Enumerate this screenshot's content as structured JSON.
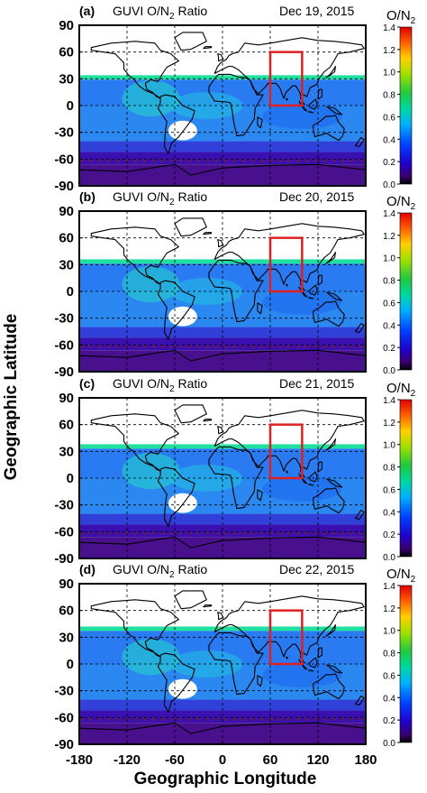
{
  "figure": {
    "ylabel": "Geographic Latitude",
    "xlabel": "Geographic Longitude",
    "colorbar_title": "O/N",
    "colorbar_title_sub": "2",
    "colorbar_ticks": [
      "1.4",
      "1.2",
      "1.0",
      "0.8",
      "0.6",
      "0.4",
      "0.2",
      "0.0"
    ],
    "colorbar_tick_values": [
      1.4,
      1.2,
      1.0,
      0.8,
      0.6,
      0.4,
      0.2,
      0.0
    ],
    "lat_ticks": [
      "90",
      "60",
      "30",
      "0",
      "-30",
      "-60",
      "-90"
    ],
    "lon_ticks": [
      "-180",
      "-120",
      "-60",
      "0",
      "60",
      "120",
      "180"
    ]
  },
  "panels": [
    {
      "letter": "(a)",
      "title_pre": "GUVI O/N",
      "title_sub": "2",
      "title_post": " Ratio",
      "date": "Dec 19, 2015",
      "band_top": 34
    },
    {
      "letter": "(b)",
      "title_pre": "GUVI O/N",
      "title_sub": "2",
      "title_post": " Ratio",
      "date": "Dec 20, 2015",
      "band_top": 36
    },
    {
      "letter": "(c)",
      "title_pre": "GUVI O/N",
      "title_sub": "2",
      "title_post": " Ratio",
      "date": "Dec 21, 2015",
      "band_top": 38
    },
    {
      "letter": "(d)",
      "title_pre": "GUVI O/N",
      "title_sub": "2",
      "title_post": " Ratio",
      "date": "Dec 22, 2015",
      "band_top": 42
    }
  ],
  "chart_data": {
    "type": "heatmap",
    "variable": "O/N2",
    "colorbar_range": [
      0.0,
      1.4
    ],
    "xlim": [
      -180,
      180
    ],
    "ylim": [
      -90,
      90
    ],
    "box_region": {
      "lon": [
        60,
        100
      ],
      "lat": [
        0,
        60
      ]
    },
    "no_data_oval": {
      "lon_center": -50,
      "lat_center": -28,
      "lon_halfwidth": 18,
      "lat_halfheight": 11
    },
    "panels": [
      {
        "date": "Dec 19, 2015",
        "data_lat_max": 34,
        "zonal_mean_o_n2": [
          {
            "lat": 30,
            "value": 0.4
          },
          {
            "lat": 0,
            "value": 0.5
          },
          {
            "lat": -30,
            "value": 0.55
          },
          {
            "lat": -60,
            "value": 0.2
          },
          {
            "lat": -75,
            "value": 0.1
          }
        ]
      },
      {
        "date": "Dec 20, 2015",
        "data_lat_max": 36,
        "zonal_mean_o_n2": [
          {
            "lat": 30,
            "value": 0.45
          },
          {
            "lat": 0,
            "value": 0.45
          },
          {
            "lat": -30,
            "value": 0.4
          },
          {
            "lat": -60,
            "value": 0.2
          },
          {
            "lat": -75,
            "value": 0.1
          }
        ]
      },
      {
        "date": "Dec 21, 2015",
        "data_lat_max": 38,
        "zonal_mean_o_n2": [
          {
            "lat": 30,
            "value": 0.45
          },
          {
            "lat": 0,
            "value": 0.45
          },
          {
            "lat": -30,
            "value": 0.3
          },
          {
            "lat": -60,
            "value": 0.15
          },
          {
            "lat": -75,
            "value": 0.1
          }
        ]
      },
      {
        "date": "Dec 22, 2015",
        "data_lat_max": 42,
        "zonal_mean_o_n2": [
          {
            "lat": 30,
            "value": 0.4
          },
          {
            "lat": 0,
            "value": 0.35
          },
          {
            "lat": -30,
            "value": 0.3
          },
          {
            "lat": -60,
            "value": 0.2
          },
          {
            "lat": -75,
            "value": 0.1
          }
        ]
      }
    ]
  }
}
